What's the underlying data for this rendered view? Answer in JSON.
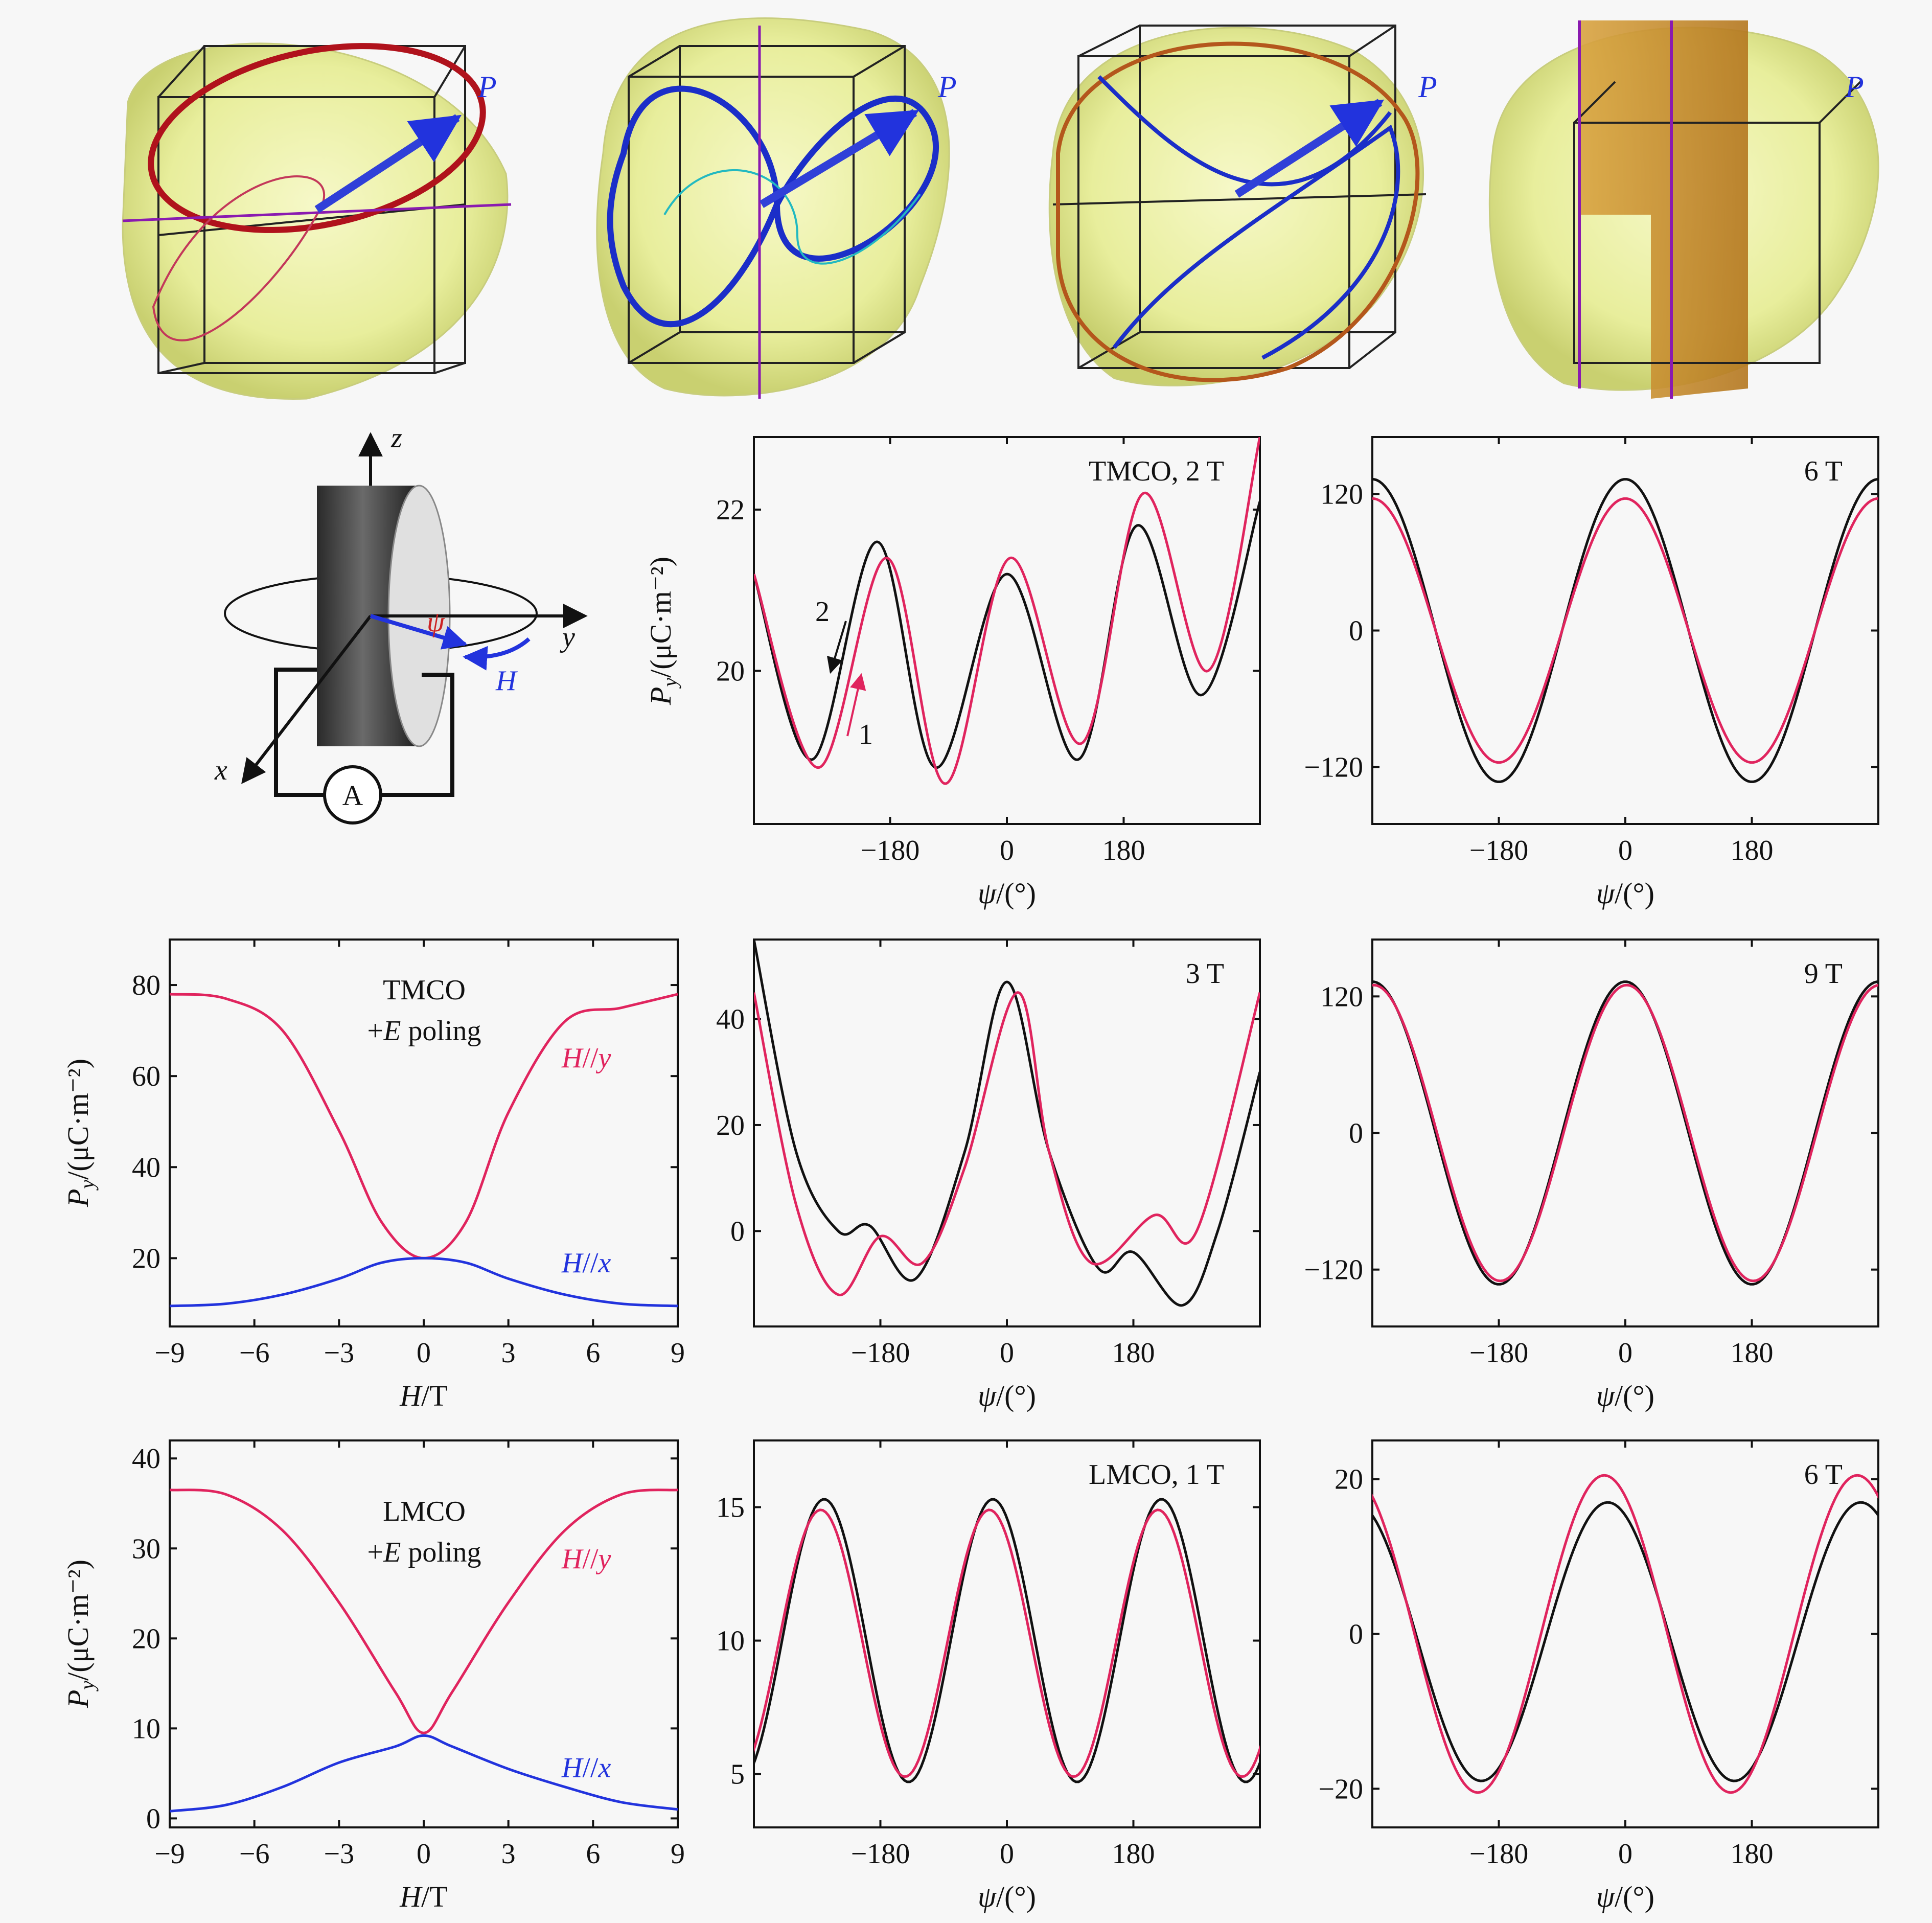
{
  "figure": {
    "top_row": {
      "panels": [
        {
          "label": "P",
          "palette": "red"
        },
        {
          "label": "P",
          "palette": "blue"
        },
        {
          "label": "P",
          "palette": "red-blue"
        },
        {
          "label": "P",
          "palette": "orange"
        }
      ]
    },
    "schematic": {
      "axes": {
        "z": "z",
        "y": "y",
        "x": "x"
      },
      "angle_label": "ψ",
      "field_label": "H",
      "ammeter_label": "A"
    },
    "colors": {
      "red": "#e0245e",
      "black": "#111111",
      "blue": "#2233dd"
    }
  },
  "chart_data": [
    {
      "id": "tmco-2T",
      "type": "line",
      "annotation": "TMCO, 2 T",
      "xlabel": "ψ/(°)",
      "ylabel_main": "P",
      "ylabel_sub": "y",
      "ylabel_unit": "/(μC·m⁻²)",
      "xlim": [
        -390,
        390
      ],
      "ylim": [
        18.1,
        22.9
      ],
      "xticks": [
        -180,
        0,
        180
      ],
      "yticks": [
        20,
        22
      ],
      "xtick_labels": [
        "−180",
        "0",
        "180"
      ],
      "ytick_labels": [
        "20",
        "22"
      ],
      "series": [
        {
          "color": "black",
          "x": [
            -390,
            -300,
            -200,
            -110,
            0,
            110,
            200,
            300,
            390
          ],
          "y": [
            21.2,
            18.9,
            21.6,
            18.8,
            21.2,
            18.9,
            21.8,
            19.7,
            22.1
          ]
        },
        {
          "color": "red",
          "x": [
            -390,
            -290,
            -185,
            -95,
            5,
            115,
            210,
            310,
            390
          ],
          "y": [
            21.2,
            18.8,
            21.4,
            18.6,
            21.4,
            19.1,
            22.2,
            20.0,
            22.9
          ]
        }
      ],
      "arrows": [
        {
          "text": "2",
          "color": "black"
        },
        {
          "text": "1",
          "color": "red"
        }
      ]
    },
    {
      "id": "tmco-6T",
      "type": "line",
      "annotation": "6 T",
      "xlabel": "ψ/(°)",
      "xlim": [
        -360,
        360
      ],
      "ylim": [
        -170,
        170
      ],
      "xticks": [
        -180,
        0,
        180
      ],
      "yticks": [
        -120,
        0,
        120
      ],
      "xtick_labels": [
        "−180",
        "0",
        "180"
      ],
      "ytick_labels": [
        "−120",
        "0",
        "120"
      ],
      "series": [
        {
          "color": "black",
          "amp": 133,
          "phase": 0,
          "offset": 0
        },
        {
          "color": "red",
          "amp": 116,
          "phase": 0,
          "offset": 0
        }
      ]
    },
    {
      "id": "tmco-vs-H",
      "type": "line",
      "annotation_line1": "TMCO",
      "annotation_line2_prefix": "+",
      "annotation_line2_italic": "E",
      "annotation_line2_suffix": " poling",
      "xlabel": "H/T",
      "ylabel_main": "P",
      "ylabel_sub": "y",
      "ylabel_unit": "/(μC·m⁻²)",
      "xlim": [
        -9,
        9
      ],
      "ylim": [
        5,
        90
      ],
      "xticks": [
        -9,
        -6,
        -3,
        0,
        3,
        6,
        9
      ],
      "yticks": [
        20,
        40,
        60,
        80
      ],
      "xtick_labels": [
        "−9",
        "−6",
        "−3",
        "0",
        "3",
        "6",
        "9"
      ],
      "ytick_labels": [
        "20",
        "40",
        "60",
        "80"
      ],
      "series": [
        {
          "name": "H//y",
          "color": "red",
          "x": [
            -9,
            -7,
            -5,
            -3,
            -1.5,
            0,
            1.5,
            3,
            5,
            7,
            9
          ],
          "y": [
            78,
            77,
            70,
            48,
            28,
            20,
            28,
            52,
            72,
            75,
            78
          ]
        },
        {
          "name": "H//x",
          "color": "blue",
          "x": [
            -9,
            -7,
            -5,
            -3,
            -1.5,
            0,
            1.5,
            3,
            5,
            7,
            9
          ],
          "y": [
            9.5,
            10,
            12,
            15.5,
            19,
            20,
            19,
            15.5,
            12,
            10,
            9.5
          ]
        }
      ]
    },
    {
      "id": "tmco-3T",
      "type": "line",
      "annotation": "3 T",
      "xlabel": "ψ/(°)",
      "xlim": [
        -360,
        360
      ],
      "ylim": [
        -18,
        55
      ],
      "xticks": [
        -180,
        0,
        180
      ],
      "yticks": [
        0,
        20,
        40
      ],
      "xtick_labels": [
        "−180",
        "0",
        "180"
      ],
      "ytick_labels": [
        "0",
        "20",
        "40"
      ],
      "series": [
        {
          "color": "black",
          "x": [
            -360,
            -300,
            -240,
            -195,
            -130,
            -60,
            0,
            60,
            130,
            180,
            250,
            300,
            360
          ],
          "y": [
            55,
            15,
            0,
            1,
            -9,
            15,
            47,
            15,
            -7,
            -4,
            -14,
            0,
            30
          ]
        },
        {
          "color": "red",
          "x": [
            -360,
            -300,
            -240,
            -180,
            -120,
            -60,
            15,
            60,
            120,
            210,
            270,
            360
          ],
          "y": [
            45,
            5,
            -12,
            -1,
            -6,
            12,
            45,
            15,
            -6,
            3,
            0,
            45
          ]
        }
      ]
    },
    {
      "id": "tmco-9T",
      "type": "line",
      "annotation": "9 T",
      "xlabel": "ψ/(°)",
      "xlim": [
        -360,
        360
      ],
      "ylim": [
        -170,
        170
      ],
      "xticks": [
        -180,
        0,
        180
      ],
      "yticks": [
        -120,
        0,
        120
      ],
      "xtick_labels": [
        "−180",
        "0",
        "180"
      ],
      "ytick_labels": [
        "−120",
        "0",
        "120"
      ],
      "series": [
        {
          "color": "black",
          "amp": 133,
          "phase": 0,
          "offset": 0
        },
        {
          "color": "red",
          "amp": 130,
          "phase": 2,
          "offset": 0
        }
      ]
    },
    {
      "id": "lmco-vs-H",
      "type": "line",
      "annotation_line1": "LMCO",
      "annotation_line2_prefix": "+",
      "annotation_line2_italic": "E",
      "annotation_line2_suffix": " poling",
      "xlabel": "H/T",
      "ylabel_main": "P",
      "ylabel_sub": "y",
      "ylabel_unit": "/(μC·m⁻²)",
      "xlim": [
        -9,
        9
      ],
      "ylim": [
        -1,
        42
      ],
      "xticks": [
        -9,
        -6,
        -3,
        0,
        3,
        6,
        9
      ],
      "yticks": [
        0,
        10,
        20,
        30,
        40
      ],
      "xtick_labels": [
        "−9",
        "−6",
        "−3",
        "0",
        "3",
        "6",
        "9"
      ],
      "ytick_labels": [
        "0",
        "10",
        "20",
        "30",
        "40"
      ],
      "series": [
        {
          "name": "H//y",
          "color": "red",
          "x": [
            -9,
            -7,
            -5,
            -3,
            -1,
            0,
            1,
            3,
            5,
            7,
            9
          ],
          "y": [
            36.5,
            36,
            32,
            24,
            14,
            9.5,
            14,
            24,
            32,
            36,
            36.5
          ]
        },
        {
          "name": "H//x",
          "color": "blue",
          "x": [
            -9,
            -7,
            -5,
            -3,
            -1,
            0,
            1,
            3,
            5,
            7,
            9
          ],
          "y": [
            0.8,
            1.5,
            3.5,
            6.2,
            8,
            9.2,
            8,
            5.5,
            3.5,
            1.8,
            1
          ]
        }
      ]
    },
    {
      "id": "lmco-1T",
      "type": "line",
      "annotation": "LMCO, 1 T",
      "xlabel": "ψ/(°)",
      "xlim": [
        -360,
        360
      ],
      "ylim": [
        3,
        17.5
      ],
      "xticks": [
        -180,
        0,
        180
      ],
      "yticks": [
        5,
        10,
        15
      ],
      "xtick_labels": [
        "−180",
        "0",
        "180"
      ],
      "ytick_labels": [
        "5",
        "10",
        "15"
      ],
      "series": [
        {
          "color": "black",
          "amp": 5.3,
          "freq": 1.5,
          "phase": -20,
          "offset": 10.0
        },
        {
          "color": "red",
          "amp": 5.0,
          "freq": 1.5,
          "phase": -25,
          "offset": 9.9
        }
      ]
    },
    {
      "id": "lmco-6T",
      "type": "line",
      "annotation": "6 T",
      "xlabel": "ψ/(°)",
      "xlim": [
        -360,
        360
      ],
      "ylim": [
        -25,
        25
      ],
      "xticks": [
        -180,
        0,
        180
      ],
      "yticks": [
        -20,
        0,
        20
      ],
      "xtick_labels": [
        "−180",
        "0",
        "180"
      ],
      "ytick_labels": [
        "−20",
        "0",
        "20"
      ],
      "series": [
        {
          "color": "black",
          "amp": 18,
          "phase": -25,
          "offset": -1
        },
        {
          "color": "red",
          "amp": 20.5,
          "phase": -30,
          "offset": 0
        }
      ]
    }
  ]
}
